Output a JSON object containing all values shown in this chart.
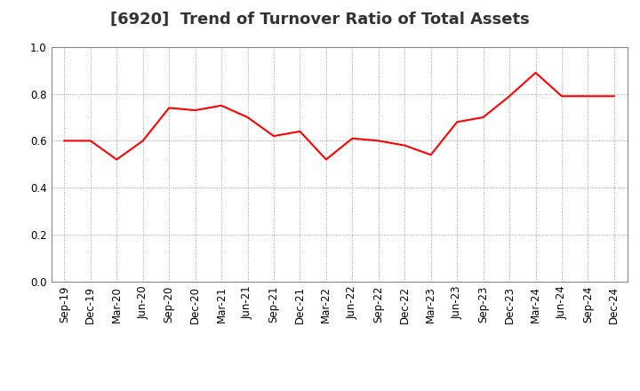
{
  "title": "[6920]  Trend of Turnover Ratio of Total Assets",
  "x_labels": [
    "Sep-19",
    "Dec-19",
    "Mar-20",
    "Jun-20",
    "Sep-20",
    "Dec-20",
    "Mar-21",
    "Jun-21",
    "Sep-21",
    "Dec-21",
    "Mar-22",
    "Jun-22",
    "Sep-22",
    "Dec-22",
    "Mar-23",
    "Jun-23",
    "Sep-23",
    "Dec-23",
    "Mar-24",
    "Jun-24",
    "Sep-24",
    "Dec-24"
  ],
  "values": [
    0.6,
    0.6,
    0.52,
    0.6,
    0.74,
    0.73,
    0.75,
    0.7,
    0.62,
    0.64,
    0.52,
    0.61,
    0.6,
    0.58,
    0.54,
    0.68,
    0.7,
    0.79,
    0.89,
    0.79,
    0.79,
    0.79
  ],
  "line_color": "#FF0000",
  "line_width": 1.5,
  "ylim": [
    0.0,
    1.0
  ],
  "yticks": [
    0.0,
    0.2,
    0.4,
    0.6,
    0.8,
    1.0
  ],
  "grid_color": "#999999",
  "background_color": "#ffffff",
  "title_fontsize": 13,
  "tick_fontsize": 8.5,
  "title_color": "#333333"
}
